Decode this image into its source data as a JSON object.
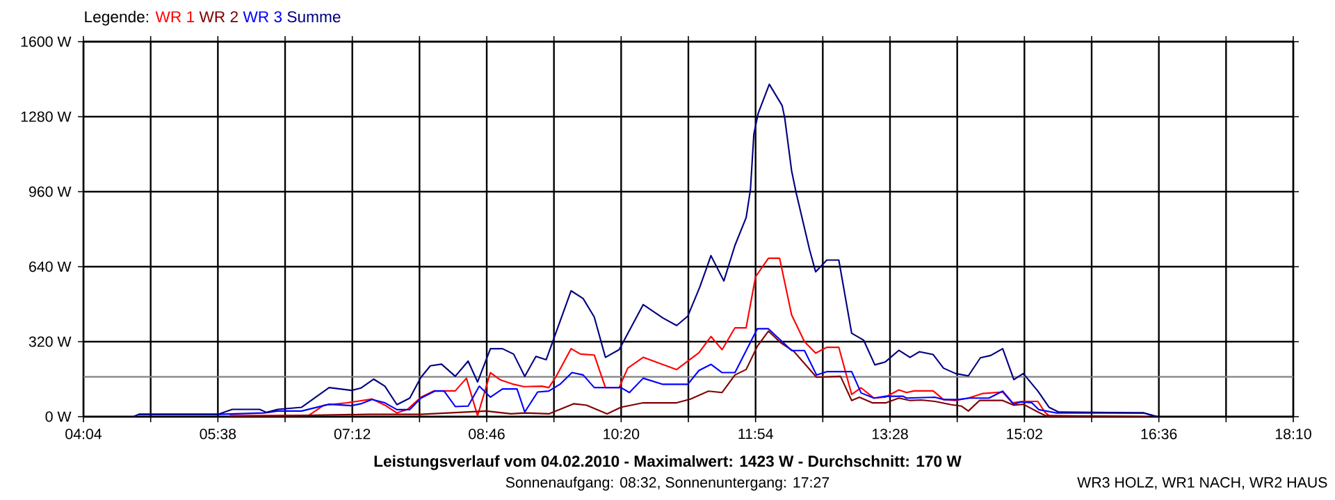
{
  "chart_data": {
    "type": "line",
    "title": "Leistungsverlauf vom 04.02.2010 - Maximalwert: 1423 W - Durchschnitt: 170 W",
    "subtitle": "Sonnenaufgang: 08:32, Sonnenuntergang: 17:27",
    "annotations": [
      "WR3 HOLZ, WR1 NACH, WR2 HAUS"
    ],
    "legend_title": "Legende:",
    "legend": "top left",
    "grid": true,
    "line_style": "solid",
    "xlim": [
      4.0667,
      18.1667
    ],
    "ylim": [
      0,
      1600
    ],
    "xticks": [
      {
        "value": 4.0667,
        "label": "04:04"
      },
      {
        "value": 4.85,
        "label": null
      },
      {
        "value": 5.6333,
        "label": "05:38"
      },
      {
        "value": 6.4167,
        "label": null
      },
      {
        "value": 7.2,
        "label": "07:12"
      },
      {
        "value": 7.9833,
        "label": null
      },
      {
        "value": 8.7667,
        "label": "08:46"
      },
      {
        "value": 9.55,
        "label": null
      },
      {
        "value": 10.3333,
        "label": "10:20"
      },
      {
        "value": 11.1167,
        "label": null
      },
      {
        "value": 11.9,
        "label": "11:54"
      },
      {
        "value": 12.6833,
        "label": null
      },
      {
        "value": 13.4667,
        "label": "13:28"
      },
      {
        "value": 14.25,
        "label": null
      },
      {
        "value": 15.0333,
        "label": "15:02"
      },
      {
        "value": 15.8167,
        "label": null
      },
      {
        "value": 16.6,
        "label": "16:36"
      },
      {
        "value": 17.3833,
        "label": null
      },
      {
        "value": 18.1667,
        "label": "18:10"
      }
    ],
    "yticks": [
      {
        "value": 0,
        "label": "0 W"
      },
      {
        "value": 320,
        "label": "320 W"
      },
      {
        "value": 640,
        "label": "640 W"
      },
      {
        "value": 960,
        "label": "960 W"
      },
      {
        "value": 1280,
        "label": "1280 W"
      },
      {
        "value": 1600,
        "label": "1600 W"
      }
    ],
    "ref_lines": [
      {
        "axis": "y",
        "value": 170,
        "color": "#808080"
      }
    ],
    "series": [
      {
        "name": "WR 1",
        "color": "#ff0000",
        "x": [
          5.77,
          6.69,
          6.87,
          7.14,
          7.43,
          7.58,
          7.72,
          7.84,
          8.0,
          8.15,
          8.4,
          8.53,
          8.66,
          8.81,
          8.92,
          9.08,
          9.2,
          9.41,
          9.49,
          9.57,
          9.75,
          9.86,
          10.02,
          10.15,
          10.31,
          10.41,
          10.59,
          10.98,
          11.11,
          11.24,
          11.38,
          11.51,
          11.66,
          11.79,
          11.9,
          12.05,
          12.18,
          12.32,
          12.47,
          12.6,
          12.73,
          12.87,
          13.02,
          13.13,
          13.28,
          13.41,
          13.57,
          13.66,
          13.75,
          13.97,
          14.09,
          14.23,
          14.38,
          14.55,
          14.78,
          14.89,
          15.02,
          15.19,
          15.27,
          15.32,
          16.48
        ],
        "values": [
          5,
          5,
          49,
          59,
          75,
          49,
          16,
          30,
          83,
          110,
          110,
          164,
          4,
          188,
          158,
          138,
          128,
          130,
          124,
          168,
          290,
          267,
          263,
          124,
          124,
          207,
          253,
          201,
          237,
          273,
          342,
          286,
          379,
          379,
          597,
          676,
          676,
          434,
          320,
          271,
          296,
          296,
          95,
          123,
          79,
          83,
          114,
          103,
          110,
          110,
          73,
          69,
          79,
          99,
          105,
          59,
          65,
          65,
          20,
          4,
          0
        ]
      },
      {
        "name": "WR 2",
        "color": "#800000",
        "x": [
          5.77,
          7.38,
          8.0,
          8.32,
          8.76,
          9.05,
          9.21,
          9.49,
          9.78,
          9.93,
          10.17,
          10.33,
          10.59,
          10.98,
          11.14,
          11.35,
          11.51,
          11.66,
          11.79,
          11.92,
          12.05,
          12.19,
          12.35,
          12.61,
          12.89,
          13.02,
          13.11,
          13.26,
          13.42,
          13.57,
          13.7,
          13.83,
          13.99,
          14.18,
          14.3,
          14.38,
          14.51,
          14.78,
          14.91,
          15.02,
          15.19,
          15.28,
          16.48
        ],
        "values": [
          0,
          10,
          10,
          16,
          24,
          12,
          16,
          12,
          55,
          49,
          12,
          40,
          59,
          59,
          75,
          109,
          103,
          178,
          201,
          300,
          365,
          316,
          277,
          168,
          172,
          69,
          83,
          59,
          59,
          79,
          69,
          71,
          65,
          51,
          45,
          24,
          69,
          69,
          49,
          53,
          20,
          4,
          0
        ]
      },
      {
        "name": "WR 3",
        "color": "#0000ff",
        "x": [
          4.71,
          5.64,
          6.17,
          6.33,
          6.61,
          6.93,
          7.19,
          7.3,
          7.43,
          7.58,
          7.72,
          7.87,
          8.0,
          8.16,
          8.27,
          8.4,
          8.55,
          8.68,
          8.81,
          8.95,
          9.12,
          9.21,
          9.36,
          9.49,
          9.62,
          9.76,
          9.89,
          10.02,
          10.33,
          10.43,
          10.59,
          10.82,
          11.11,
          11.24,
          11.38,
          11.51,
          11.66,
          11.92,
          12.05,
          12.32,
          12.47,
          12.61,
          12.73,
          13.02,
          13.13,
          13.28,
          13.41,
          13.62,
          13.66,
          13.99,
          14.09,
          14.26,
          14.39,
          14.62,
          14.78,
          14.91,
          14.99,
          15.12,
          15.2,
          15.4,
          16.42,
          16.58
        ],
        "values": [
          10,
          10,
          16,
          24,
          24,
          53,
          47,
          55,
          73,
          59,
          30,
          30,
          79,
          109,
          109,
          43,
          45,
          130,
          83,
          118,
          118,
          20,
          105,
          109,
          138,
          188,
          178,
          124,
          124,
          103,
          164,
          138,
          138,
          197,
          223,
          188,
          188,
          375,
          375,
          282,
          282,
          178,
          192,
          192,
          101,
          79,
          87,
          87,
          79,
          83,
          73,
          73,
          79,
          79,
          109,
          53,
          63,
          59,
          30,
          16,
          16,
          0
        ]
      },
      {
        "name": "Summe",
        "color": "#000080",
        "x": [
          4.65,
          4.71,
          5.64,
          5.8,
          6.12,
          6.2,
          6.33,
          6.61,
          6.93,
          7.19,
          7.3,
          7.45,
          7.58,
          7.72,
          7.87,
          8.0,
          8.11,
          8.24,
          8.4,
          8.55,
          8.66,
          8.81,
          8.95,
          9.08,
          9.21,
          9.34,
          9.46,
          9.75,
          9.89,
          10.02,
          10.15,
          10.31,
          10.59,
          10.82,
          10.98,
          11.11,
          11.25,
          11.38,
          11.53,
          11.66,
          11.79,
          11.84,
          11.88,
          11.93,
          12.06,
          12.21,
          12.24,
          12.32,
          12.37,
          12.53,
          12.6,
          12.73,
          12.87,
          13.02,
          13.16,
          13.29,
          13.41,
          13.57,
          13.7,
          13.81,
          13.97,
          14.09,
          14.23,
          14.38,
          14.52,
          14.64,
          14.78,
          14.91,
          15.02,
          15.19,
          15.32,
          15.43,
          16.42,
          16.58
        ],
        "values": [
          0,
          10,
          10,
          31,
          31,
          18,
          31,
          40,
          124,
          112,
          122,
          160,
          130,
          51,
          79,
          168,
          217,
          224,
          172,
          237,
          148,
          290,
          290,
          267,
          172,
          257,
          243,
          537,
          504,
          425,
          253,
          286,
          478,
          421,
          389,
          429,
          553,
          687,
          579,
          731,
          849,
          968,
          1205,
          1294,
          1418,
          1327,
          1274,
          1049,
          960,
          711,
          618,
          668,
          668,
          356,
          326,
          221,
          233,
          283,
          253,
          277,
          265,
          207,
          184,
          174,
          251,
          261,
          290,
          158,
          184,
          109,
          40,
          20,
          16,
          0
        ]
      }
    ]
  }
}
